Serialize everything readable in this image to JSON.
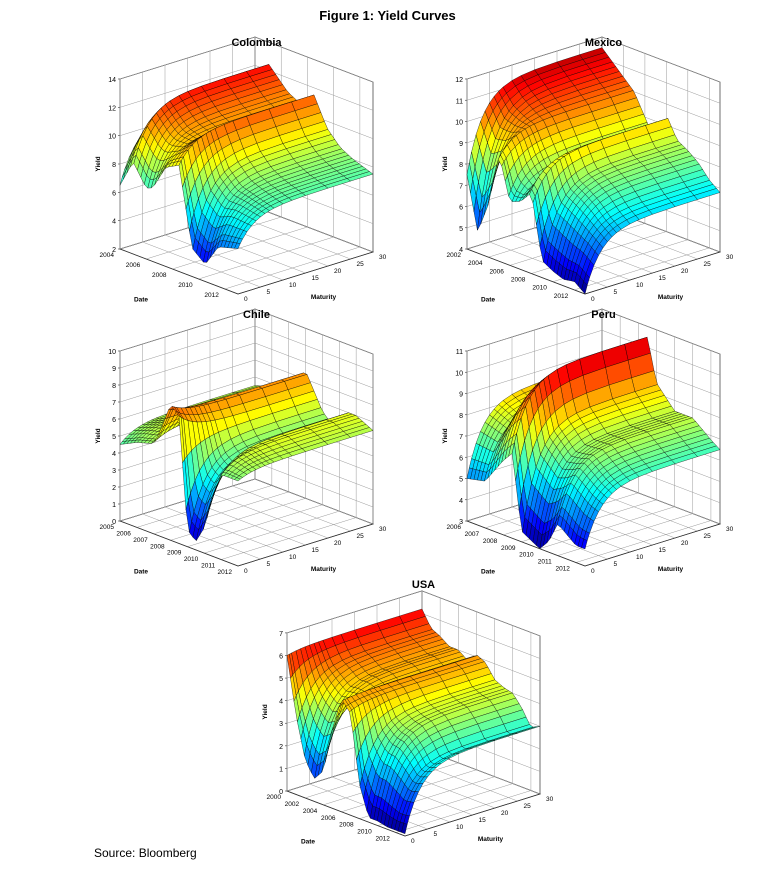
{
  "figure_title": "Figure 1: Yield Curves",
  "source": "Source: Bloomberg",
  "chart_data": [
    {
      "type": "surface3d",
      "title": "Colombia",
      "xlabel": "Date",
      "ylabel": "Maturity",
      "zlabel": "Yield",
      "date_ticks": [
        "2004",
        "2006",
        "2008",
        "2010",
        "2012"
      ],
      "date_range": [
        2004,
        2013
      ],
      "maturity_ticks": [
        "0",
        "5",
        "10",
        "15",
        "20",
        "25",
        "30"
      ],
      "maturity_range": [
        0,
        30
      ],
      "yield_ticks": [
        "2",
        "4",
        "6",
        "8",
        "10",
        "12",
        "14"
      ],
      "yield_range": [
        2,
        14
      ],
      "grid": true,
      "colormap": "jet",
      "series": [
        {
          "date": 2004.0,
          "short": 6.5,
          "long": 10.5
        },
        {
          "date": 2005.0,
          "short": 8.5,
          "long": 12.5
        },
        {
          "date": 2006.0,
          "short": 7.0,
          "long": 11.5
        },
        {
          "date": 2006.5,
          "short": 7.2,
          "long": 11.0
        },
        {
          "date": 2007.5,
          "short": 9.0,
          "long": 10.5
        },
        {
          "date": 2008.5,
          "short": 9.5,
          "long": 11.5
        },
        {
          "date": 2009.5,
          "short": 4.0,
          "long": 9.5
        },
        {
          "date": 2010.5,
          "short": 3.2,
          "long": 8.5
        },
        {
          "date": 2011.5,
          "short": 4.8,
          "long": 8.0
        },
        {
          "date": 2013.0,
          "short": 5.2,
          "long": 7.5
        }
      ]
    },
    {
      "type": "surface3d",
      "title": "Mexico",
      "xlabel": "Date",
      "ylabel": "Maturity",
      "zlabel": "Yield",
      "date_ticks": [
        "2002",
        "2004",
        "2006",
        "2008",
        "2010",
        "2012"
      ],
      "date_range": [
        2002,
        2013
      ],
      "maturity_ticks": [
        "0",
        "5",
        "10",
        "15",
        "20",
        "25",
        "30"
      ],
      "maturity_range": [
        0,
        30
      ],
      "yield_ticks": [
        "4",
        "5",
        "6",
        "7",
        "8",
        "9",
        "10",
        "11",
        "12"
      ],
      "yield_range": [
        4,
        12
      ],
      "grid": true,
      "colormap": "jet",
      "series": [
        {
          "date": 2002.0,
          "short": 7.5,
          "long": 11.5
        },
        {
          "date": 2003.0,
          "short": 5.0,
          "long": 11.0
        },
        {
          "date": 2004.0,
          "short": 6.5,
          "long": 10.5
        },
        {
          "date": 2005.0,
          "short": 9.0,
          "long": 10.0
        },
        {
          "date": 2006.0,
          "short": 7.0,
          "long": 9.0
        },
        {
          "date": 2007.0,
          "short": 7.2,
          "long": 8.0
        },
        {
          "date": 2008.0,
          "short": 7.8,
          "long": 9.5
        },
        {
          "date": 2009.0,
          "short": 4.8,
          "long": 8.5
        },
        {
          "date": 2010.0,
          "short": 4.5,
          "long": 8.2
        },
        {
          "date": 2011.0,
          "short": 4.3,
          "long": 7.8
        },
        {
          "date": 2012.0,
          "short": 4.4,
          "long": 7.2
        },
        {
          "date": 2013.0,
          "short": 4.0,
          "long": 6.8
        }
      ]
    },
    {
      "type": "surface3d",
      "title": "Chile",
      "xlabel": "Date",
      "ylabel": "Maturity",
      "zlabel": "Yield",
      "date_ticks": [
        "2005",
        "2006",
        "2007",
        "2008",
        "2009",
        "2010",
        "2011",
        "2012"
      ],
      "date_range": [
        2005,
        2012
      ],
      "maturity_ticks": [
        "0",
        "5",
        "10",
        "15",
        "20",
        "25",
        "30"
      ],
      "maturity_range": [
        0,
        30
      ],
      "yield_ticks": [
        "0",
        "1",
        "2",
        "3",
        "4",
        "5",
        "6",
        "7",
        "8",
        "9",
        "10"
      ],
      "yield_range": [
        0,
        10
      ],
      "grid": true,
      "colormap": "jet",
      "series": [
        {
          "date": 2005.0,
          "short": 4.5,
          "long": 5.5
        },
        {
          "date": 2006.0,
          "short": 5.0,
          "long": 5.8
        },
        {
          "date": 2007.0,
          "short": 5.3,
          "long": 6.0
        },
        {
          "date": 2007.5,
          "short": 6.5,
          "long": 6.8
        },
        {
          "date": 2008.0,
          "short": 8.0,
          "long": 7.5
        },
        {
          "date": 2008.5,
          "short": 7.5,
          "long": 6.5
        },
        {
          "date": 2009.0,
          "short": 1.0,
          "long": 5.5
        },
        {
          "date": 2009.5,
          "short": 0.5,
          "long": 5.0
        },
        {
          "date": 2010.0,
          "short": 1.5,
          "long": 5.5
        },
        {
          "date": 2010.5,
          "short": 3.5,
          "long": 6.0
        },
        {
          "date": 2011.0,
          "short": 5.0,
          "long": 6.0
        },
        {
          "date": 2012.0,
          "short": 5.0,
          "long": 5.5
        }
      ]
    },
    {
      "type": "surface3d",
      "title": "Peru",
      "xlabel": "Date",
      "ylabel": "Maturity",
      "zlabel": "Yield",
      "date_ticks": [
        "2006",
        "2007",
        "2008",
        "2009",
        "2010",
        "2011",
        "2012"
      ],
      "date_range": [
        2006,
        2012.5
      ],
      "maturity_ticks": [
        "0",
        "5",
        "10",
        "15",
        "20",
        "25",
        "30"
      ],
      "maturity_range": [
        0,
        30
      ],
      "yield_ticks": [
        "3",
        "4",
        "5",
        "6",
        "7",
        "8",
        "9",
        "10",
        "11"
      ],
      "yield_range": [
        3,
        11
      ],
      "grid": true,
      "colormap": "jet",
      "series": [
        {
          "date": 2006.0,
          "short": 5.0,
          "long": 8.5
        },
        {
          "date": 2007.0,
          "short": 5.2,
          "long": 8.0
        },
        {
          "date": 2008.0,
          "short": 6.5,
          "long": 10.0
        },
        {
          "date": 2008.5,
          "short": 7.0,
          "long": 10.5
        },
        {
          "date": 2009.0,
          "short": 3.5,
          "long": 8.5
        },
        {
          "date": 2010.0,
          "short": 3.0,
          "long": 7.5
        },
        {
          "date": 2010.5,
          "short": 3.5,
          "long": 7.5
        },
        {
          "date": 2011.0,
          "short": 4.5,
          "long": 7.5
        },
        {
          "date": 2012.0,
          "short": 3.8,
          "long": 6.8
        },
        {
          "date": 2012.5,
          "short": 3.8,
          "long": 6.5
        }
      ]
    },
    {
      "type": "surface3d",
      "title": "USA",
      "xlabel": "Date",
      "ylabel": "Maturity",
      "zlabel": "Yield",
      "date_ticks": [
        "2000",
        "2002",
        "2004",
        "2006",
        "2008",
        "2010",
        "2012"
      ],
      "date_range": [
        2000,
        2013
      ],
      "maturity_ticks": [
        "0",
        "5",
        "10",
        "15",
        "20",
        "25",
        "30"
      ],
      "maturity_range": [
        0,
        30
      ],
      "yield_ticks": [
        "0",
        "1",
        "2",
        "3",
        "4",
        "5",
        "6",
        "7"
      ],
      "yield_range": [
        0,
        7
      ],
      "grid": true,
      "colormap": "jet",
      "series": [
        {
          "date": 2000.0,
          "short": 6.0,
          "long": 6.2
        },
        {
          "date": 2001.0,
          "short": 3.5,
          "long": 5.5
        },
        {
          "date": 2002.0,
          "short": 1.7,
          "long": 5.3
        },
        {
          "date": 2003.0,
          "short": 1.0,
          "long": 5.0
        },
        {
          "date": 2004.0,
          "short": 1.5,
          "long": 5.0
        },
        {
          "date": 2005.0,
          "short": 3.5,
          "long": 4.7
        },
        {
          "date": 2006.0,
          "short": 5.0,
          "long": 5.1
        },
        {
          "date": 2007.0,
          "short": 4.5,
          "long": 4.9
        },
        {
          "date": 2008.0,
          "short": 1.5,
          "long": 4.3
        },
        {
          "date": 2009.0,
          "short": 0.2,
          "long": 4.1
        },
        {
          "date": 2010.0,
          "short": 0.2,
          "long": 4.0
        },
        {
          "date": 2011.0,
          "short": 0.1,
          "long": 3.5
        },
        {
          "date": 2012.0,
          "short": 0.1,
          "long": 2.8
        },
        {
          "date": 2013.0,
          "short": 0.1,
          "long": 3.0
        }
      ]
    }
  ]
}
